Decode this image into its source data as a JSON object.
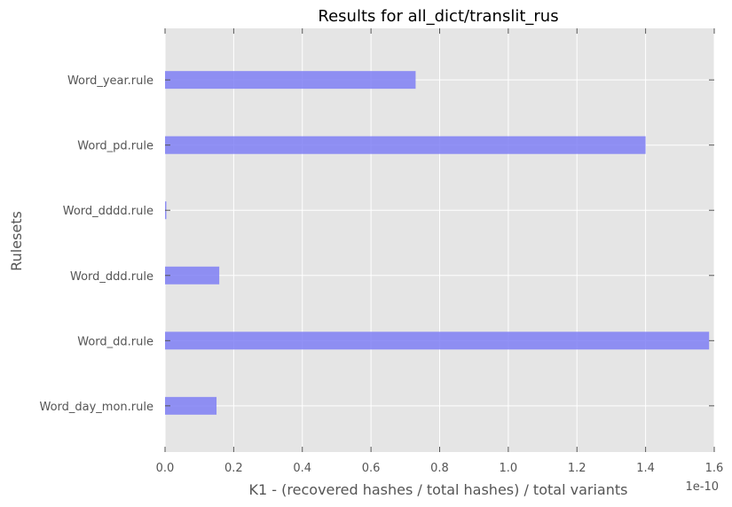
{
  "chart_data": {
    "type": "bar",
    "orientation": "horizontal",
    "title": "Results for all_dict/translit_rus",
    "xlabel": "K1 - (recovered hashes / total hashes) / total variants",
    "ylabel": "Rulesets",
    "x_offset_label": "1e-10",
    "xlim": [
      0,
      1.6
    ],
    "x_ticks": [
      0.0,
      0.2,
      0.4,
      0.6,
      0.8,
      1.0,
      1.2,
      1.4,
      1.6
    ],
    "x_tick_labels": [
      "0.0",
      "0.2",
      "0.4",
      "0.6",
      "0.8",
      "1.0",
      "1.2",
      "1.4",
      "1.6"
    ],
    "categories": [
      "Word_day_mon.rule",
      "Word_dd.rule",
      "Word_ddd.rule",
      "Word_dddd.rule",
      "Word_pd.rule",
      "Word_year.rule"
    ],
    "values": [
      0.15,
      1.585,
      0.158,
      0.003,
      1.4,
      0.73
    ],
    "value_scale": "1e-10",
    "grid": true,
    "colors": {
      "bar": "#7f7ff4",
      "plot_background": "#e5e5e5",
      "grid": "#ffffff",
      "text": "#555555",
      "title": "#000000"
    }
  }
}
